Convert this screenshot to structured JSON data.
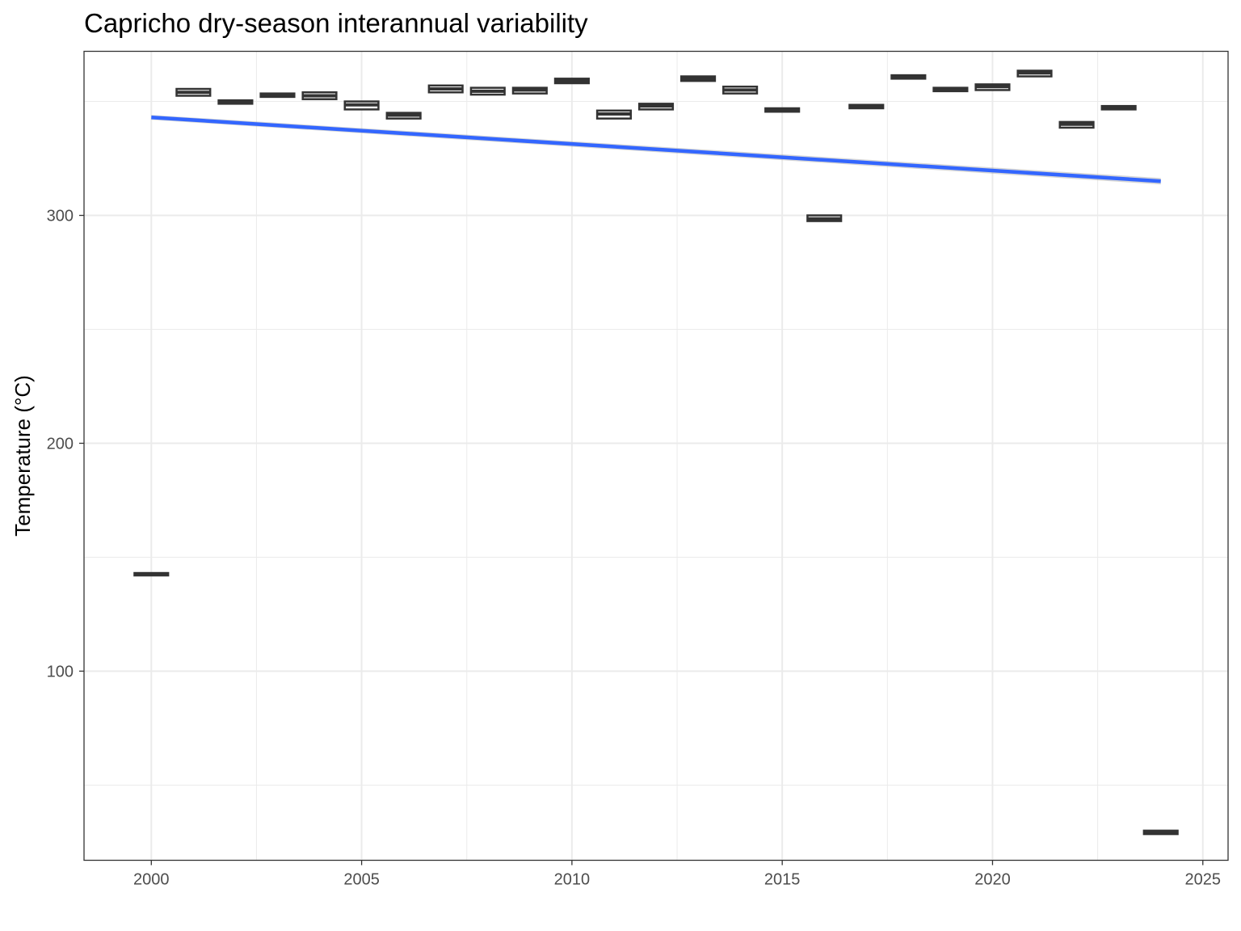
{
  "chart_data": {
    "type": "box",
    "title": "Capricho dry-season interannual variability",
    "xlabel": "",
    "ylabel": "Temperature (°C)",
    "xlim": [
      1998.4,
      2025.6
    ],
    "ylim": [
      17,
      372
    ],
    "x_ticks": [
      2000,
      2005,
      2010,
      2015,
      2020,
      2025
    ],
    "x_tick_labels": [
      "2000",
      "2005",
      "2010",
      "2015",
      "2020",
      "2025"
    ],
    "y_ticks": [
      100,
      200,
      300
    ],
    "y_tick_labels": [
      "100",
      "200",
      "300"
    ],
    "grid": true,
    "box_color": "#333333",
    "trend_color": "#3366ff",
    "boxes": [
      {
        "year": 2000,
        "low": 142.0,
        "high": 143.0,
        "median": 142.5
      },
      {
        "year": 2001,
        "low": 352.5,
        "high": 355.5,
        "median": 354.0
      },
      {
        "year": 2002,
        "low": 349.0,
        "high": 350.5,
        "median": 350.0
      },
      {
        "year": 2003,
        "low": 352.0,
        "high": 353.5,
        "median": 352.5
      },
      {
        "year": 2004,
        "low": 351.0,
        "high": 354.0,
        "median": 352.5
      },
      {
        "year": 2005,
        "low": 346.5,
        "high": 350.0,
        "median": 348.5
      },
      {
        "year": 2006,
        "low": 342.5,
        "high": 345.0,
        "median": 344.0
      },
      {
        "year": 2007,
        "low": 354.0,
        "high": 357.0,
        "median": 355.5
      },
      {
        "year": 2008,
        "low": 353.0,
        "high": 356.0,
        "median": 354.5
      },
      {
        "year": 2009,
        "low": 353.5,
        "high": 356.0,
        "median": 355.0
      },
      {
        "year": 2010,
        "low": 358.0,
        "high": 360.0,
        "median": 359.0
      },
      {
        "year": 2011,
        "low": 342.5,
        "high": 346.0,
        "median": 344.5
      },
      {
        "year": 2012,
        "low": 346.5,
        "high": 349.0,
        "median": 348.0
      },
      {
        "year": 2013,
        "low": 359.0,
        "high": 361.0,
        "median": 360.0
      },
      {
        "year": 2014,
        "low": 353.5,
        "high": 356.5,
        "median": 355.0
      },
      {
        "year": 2015,
        "low": 345.5,
        "high": 347.0,
        "median": 346.0
      },
      {
        "year": 2016,
        "low": 297.5,
        "high": 300.0,
        "median": 298.5
      },
      {
        "year": 2017,
        "low": 347.0,
        "high": 348.5,
        "median": 348.0
      },
      {
        "year": 2018,
        "low": 360.0,
        "high": 361.5,
        "median": 360.5
      },
      {
        "year": 2019,
        "low": 354.5,
        "high": 356.0,
        "median": 355.0
      },
      {
        "year": 2020,
        "low": 355.0,
        "high": 357.5,
        "median": 356.5
      },
      {
        "year": 2021,
        "low": 361.0,
        "high": 363.5,
        "median": 362.5
      },
      {
        "year": 2022,
        "low": 338.5,
        "high": 341.0,
        "median": 340.0
      },
      {
        "year": 2023,
        "low": 346.5,
        "high": 348.0,
        "median": 347.0
      },
      {
        "year": 2024,
        "low": 28.5,
        "high": 30.0,
        "median": 29.5
      }
    ],
    "trend_line": {
      "x": [
        2000,
        2024
      ],
      "y": [
        343.0,
        315.0
      ]
    }
  }
}
